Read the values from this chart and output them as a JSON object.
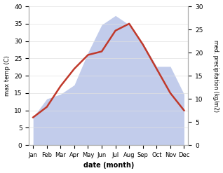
{
  "months": [
    "Jan",
    "Feb",
    "Mar",
    "Apr",
    "May",
    "Jun",
    "Jul",
    "Aug",
    "Sep",
    "Oct",
    "Nov",
    "Dec"
  ],
  "temp": [
    8,
    11,
    17,
    22,
    26,
    27,
    33,
    35,
    29,
    22,
    15,
    10
  ],
  "precip": [
    6,
    10,
    11,
    13,
    20,
    26,
    28,
    26,
    22,
    17,
    17,
    11
  ],
  "temp_color": "#c0392b",
  "precip_fill_color": "#b8c4e8",
  "ylim_left": [
    0,
    40
  ],
  "ylim_right": [
    0,
    30
  ],
  "ylabel_left": "max temp (C)",
  "ylabel_right": "med. precipitation (kg/m2)",
  "xlabel": "date (month)",
  "bg_color": "#ffffff"
}
